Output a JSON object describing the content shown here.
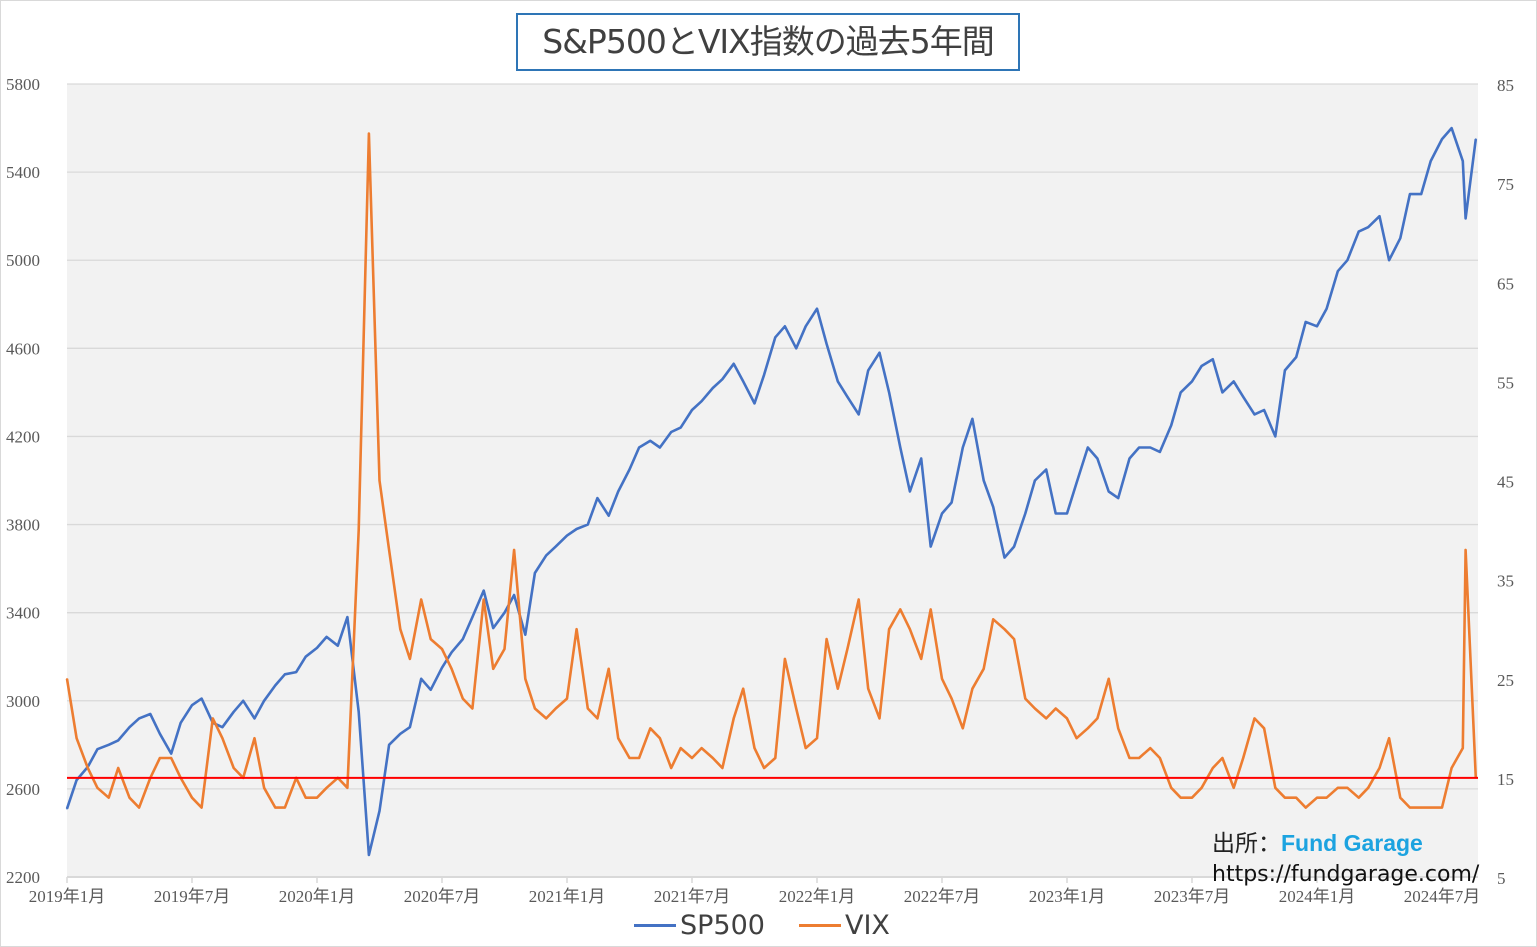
{
  "chart_data": {
    "type": "line",
    "title": "S&P500とVIX指数の過去5年間",
    "x": [
      "2019-01-01",
      "2019-01-15",
      "2019-02-01",
      "2019-02-15",
      "2019-03-01",
      "2019-03-15",
      "2019-04-01",
      "2019-04-15",
      "2019-05-01",
      "2019-05-15",
      "2019-06-01",
      "2019-06-15",
      "2019-07-01",
      "2019-07-15",
      "2019-08-01",
      "2019-08-15",
      "2019-09-01",
      "2019-09-15",
      "2019-10-01",
      "2019-10-15",
      "2019-11-01",
      "2019-11-15",
      "2019-12-01",
      "2019-12-15",
      "2020-01-01",
      "2020-01-15",
      "2020-02-01",
      "2020-02-15",
      "2020-03-01",
      "2020-03-16",
      "2020-04-01",
      "2020-04-15",
      "2020-05-01",
      "2020-05-15",
      "2020-06-01",
      "2020-06-15",
      "2020-07-01",
      "2020-07-15",
      "2020-08-01",
      "2020-08-15",
      "2020-09-01",
      "2020-09-15",
      "2020-10-01",
      "2020-10-15",
      "2020-11-01",
      "2020-11-15",
      "2020-12-01",
      "2020-12-15",
      "2021-01-01",
      "2021-01-15",
      "2021-02-01",
      "2021-02-15",
      "2021-03-01",
      "2021-03-15",
      "2021-04-01",
      "2021-04-15",
      "2021-05-01",
      "2021-05-15",
      "2021-06-01",
      "2021-06-15",
      "2021-07-01",
      "2021-07-15",
      "2021-08-01",
      "2021-08-15",
      "2021-09-01",
      "2021-09-15",
      "2021-10-01",
      "2021-10-15",
      "2021-11-01",
      "2021-11-15",
      "2021-12-01",
      "2021-12-15",
      "2022-01-01",
      "2022-01-15",
      "2022-02-01",
      "2022-02-15",
      "2022-03-01",
      "2022-03-15",
      "2022-04-01",
      "2022-04-15",
      "2022-05-01",
      "2022-05-15",
      "2022-06-01",
      "2022-06-15",
      "2022-07-01",
      "2022-07-15",
      "2022-08-01",
      "2022-08-15",
      "2022-09-01",
      "2022-09-15",
      "2022-10-01",
      "2022-10-15",
      "2022-11-01",
      "2022-11-15",
      "2022-12-01",
      "2022-12-15",
      "2023-01-01",
      "2023-01-15",
      "2023-02-01",
      "2023-02-15",
      "2023-03-01",
      "2023-03-15",
      "2023-04-01",
      "2023-04-15",
      "2023-05-01",
      "2023-05-15",
      "2023-06-01",
      "2023-06-15",
      "2023-07-01",
      "2023-07-15",
      "2023-08-01",
      "2023-08-15",
      "2023-09-01",
      "2023-09-15",
      "2023-10-01",
      "2023-10-15",
      "2023-11-01",
      "2023-11-15",
      "2023-12-01",
      "2023-12-15",
      "2024-01-01",
      "2024-01-15",
      "2024-02-01",
      "2024-02-15",
      "2024-03-01",
      "2024-03-15",
      "2024-04-01",
      "2024-04-15",
      "2024-05-01",
      "2024-05-15",
      "2024-06-01",
      "2024-06-15",
      "2024-07-01",
      "2024-07-15",
      "2024-08-01",
      "2024-08-05",
      "2024-08-20"
    ],
    "series": [
      {
        "name": "SP500",
        "axis": "left",
        "color": "#4472c4",
        "values": [
          2510,
          2640,
          2700,
          2780,
          2800,
          2820,
          2880,
          2920,
          2940,
          2850,
          2760,
          2900,
          2980,
          3010,
          2900,
          2880,
          2950,
          3000,
          2920,
          3000,
          3070,
          3120,
          3130,
          3200,
          3240,
          3290,
          3250,
          3380,
          2950,
          2300,
          2500,
          2800,
          2850,
          2880,
          3100,
          3050,
          3150,
          3220,
          3280,
          3380,
          3500,
          3330,
          3400,
          3480,
          3300,
          3580,
          3660,
          3700,
          3750,
          3780,
          3800,
          3920,
          3840,
          3950,
          4050,
          4150,
          4180,
          4150,
          4220,
          4240,
          4320,
          4360,
          4420,
          4460,
          4530,
          4450,
          4350,
          4480,
          4650,
          4700,
          4600,
          4700,
          4780,
          4620,
          4450,
          4380,
          4300,
          4500,
          4580,
          4400,
          4150,
          3950,
          4100,
          3700,
          3850,
          3900,
          4150,
          4280,
          4000,
          3880,
          3650,
          3700,
          3850,
          4000,
          4050,
          3850,
          3850,
          3990,
          4150,
          4100,
          3950,
          3920,
          4100,
          4150,
          4150,
          4130,
          4250,
          4400,
          4450,
          4520,
          4550,
          4400,
          4450,
          4380,
          4300,
          4320,
          4200,
          4500,
          4560,
          4720,
          4700,
          4780,
          4950,
          5000,
          5130,
          5150,
          5200,
          5000,
          5100,
          5300,
          5300,
          5450,
          5550,
          5600,
          5450,
          5190,
          5550
        ]
      },
      {
        "name": "VIX",
        "axis": "right",
        "color": "#ed7d31",
        "values": [
          25,
          19,
          16,
          14,
          13,
          16,
          13,
          12,
          15,
          17,
          17,
          15,
          13,
          12,
          21,
          19,
          16,
          15,
          19,
          14,
          12,
          12,
          15,
          13,
          13,
          14,
          15,
          14,
          40,
          80,
          45,
          38,
          30,
          27,
          33,
          29,
          28,
          26,
          23,
          22,
          33,
          26,
          28,
          38,
          25,
          22,
          21,
          22,
          23,
          30,
          22,
          21,
          26,
          19,
          17,
          17,
          20,
          19,
          16,
          18,
          17,
          18,
          17,
          16,
          21,
          24,
          18,
          16,
          17,
          27,
          22,
          18,
          19,
          29,
          24,
          28,
          33,
          24,
          21,
          30,
          32,
          30,
          27,
          32,
          25,
          23,
          20,
          24,
          26,
          31,
          30,
          29,
          23,
          22,
          21,
          22,
          21,
          19,
          20,
          21,
          25,
          20,
          17,
          17,
          18,
          17,
          14,
          13,
          13,
          14,
          16,
          17,
          14,
          17,
          21,
          20,
          14,
          13,
          13,
          12,
          13,
          13,
          14,
          14,
          13,
          14,
          16,
          19,
          13,
          12,
          12,
          12,
          12,
          16,
          18,
          38,
          15
        ]
      }
    ],
    "reference_line": {
      "axis": "right",
      "value": 15,
      "color": "#ff0000"
    },
    "y_left": {
      "range": [
        2200,
        5800
      ],
      "ticks": [
        "2200",
        "2600",
        "3000",
        "3400",
        "3800",
        "4200",
        "4600",
        "5000",
        "5400",
        "5800"
      ]
    },
    "y_right": {
      "range": [
        5,
        85
      ],
      "ticks": [
        "5",
        "15",
        "25",
        "35",
        "45",
        "55",
        "65",
        "75",
        "85"
      ]
    },
    "x_ticks": [
      {
        "date": "2019-01-01",
        "label": "2019年1月"
      },
      {
        "date": "2019-07-01",
        "label": "2019年7月"
      },
      {
        "date": "2020-01-01",
        "label": "2020年1月"
      },
      {
        "date": "2020-07-01",
        "label": "2020年7月"
      },
      {
        "date": "2021-01-01",
        "label": "2021年1月"
      },
      {
        "date": "2021-07-01",
        "label": "2021年7月"
      },
      {
        "date": "2022-01-01",
        "label": "2022年1月"
      },
      {
        "date": "2022-07-01",
        "label": "2022年7月"
      },
      {
        "date": "2023-01-01",
        "label": "2023年1月"
      },
      {
        "date": "2023-07-01",
        "label": "2023年7月"
      },
      {
        "date": "2024-01-01",
        "label": "2024年1月"
      },
      {
        "date": "2024-07-01",
        "label": "2024年7月"
      }
    ],
    "grid": true,
    "legend": "bottom"
  },
  "source": {
    "label": "出所：",
    "brand": "Fund Garage",
    "url": "https://fundgarage.com/"
  }
}
